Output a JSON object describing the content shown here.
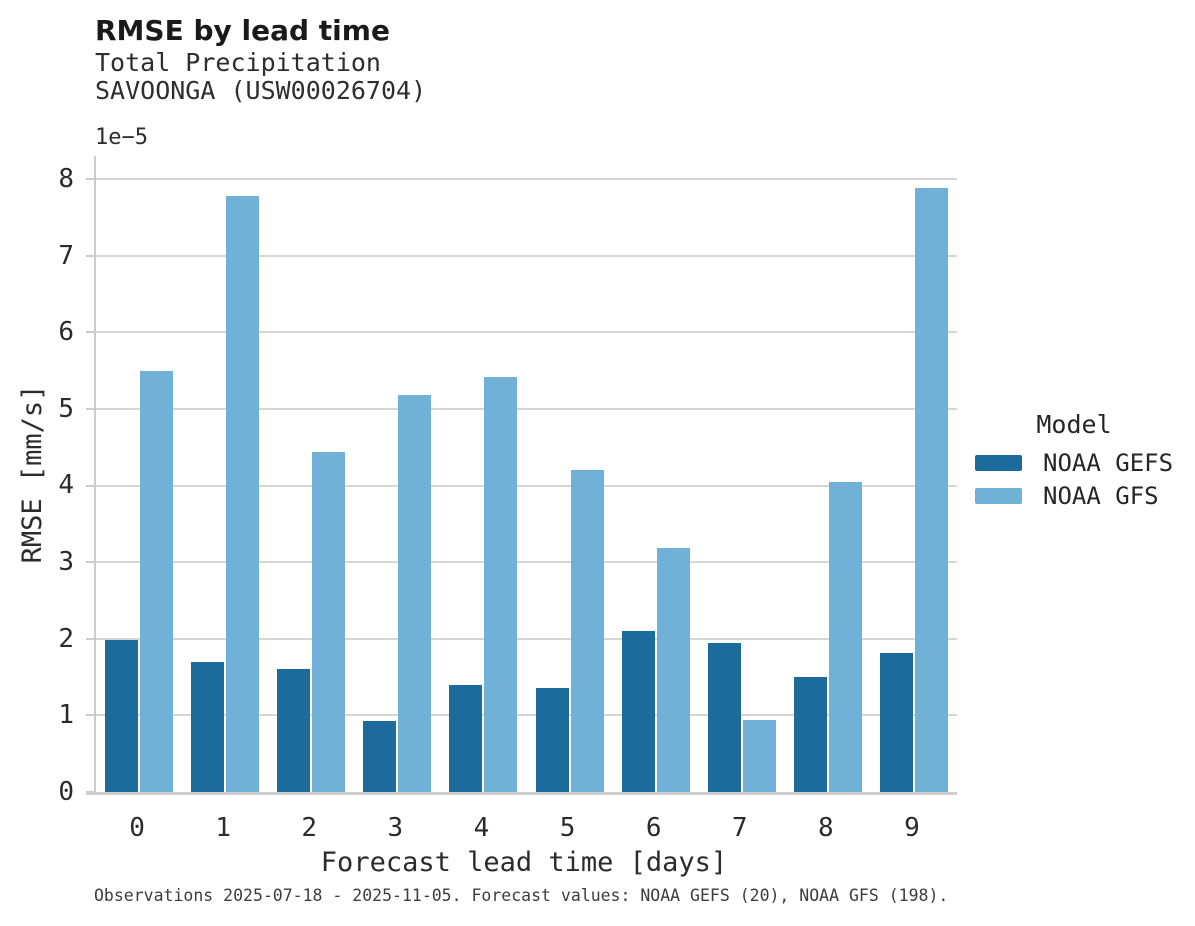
{
  "figure": {
    "title": "RMSE by lead time",
    "subtitle_line1": "Total Precipitation",
    "subtitle_line2": "SAVOONGA (USW00026704)",
    "footer": "Observations 2025-07-18 - 2025-11-05. Forecast values: NOAA GEFS (20), NOAA GFS (198)."
  },
  "chart_data": {
    "type": "bar",
    "title": "RMSE by lead time",
    "subtitle": [
      "Total Precipitation",
      "SAVOONGA (USW00026704)"
    ],
    "categories": [
      "0",
      "1",
      "2",
      "3",
      "4",
      "5",
      "6",
      "7",
      "8",
      "9"
    ],
    "series": [
      {
        "name": "NOAA GEFS",
        "color": "#1c6b9c",
        "values": [
          1.98,
          1.7,
          1.6,
          0.93,
          1.4,
          1.36,
          2.1,
          1.95,
          1.5,
          1.81
        ]
      },
      {
        "name": "NOAA GFS",
        "color": "#71b1d7",
        "values": [
          5.5,
          7.78,
          4.44,
          5.18,
          5.42,
          4.2,
          3.18,
          0.94,
          4.05,
          7.88
        ]
      }
    ],
    "value_unit_scale": "1e-5",
    "offset_label": "1e−5",
    "xlabel": "Forecast lead time [days]",
    "ylabel": "RMSE [mm/s]",
    "ylim": [
      0,
      8.3
    ],
    "yticks": [
      0,
      1,
      2,
      3,
      4,
      5,
      6,
      7,
      8
    ],
    "grid": true,
    "legend": {
      "title": "Model",
      "position": "right"
    }
  }
}
